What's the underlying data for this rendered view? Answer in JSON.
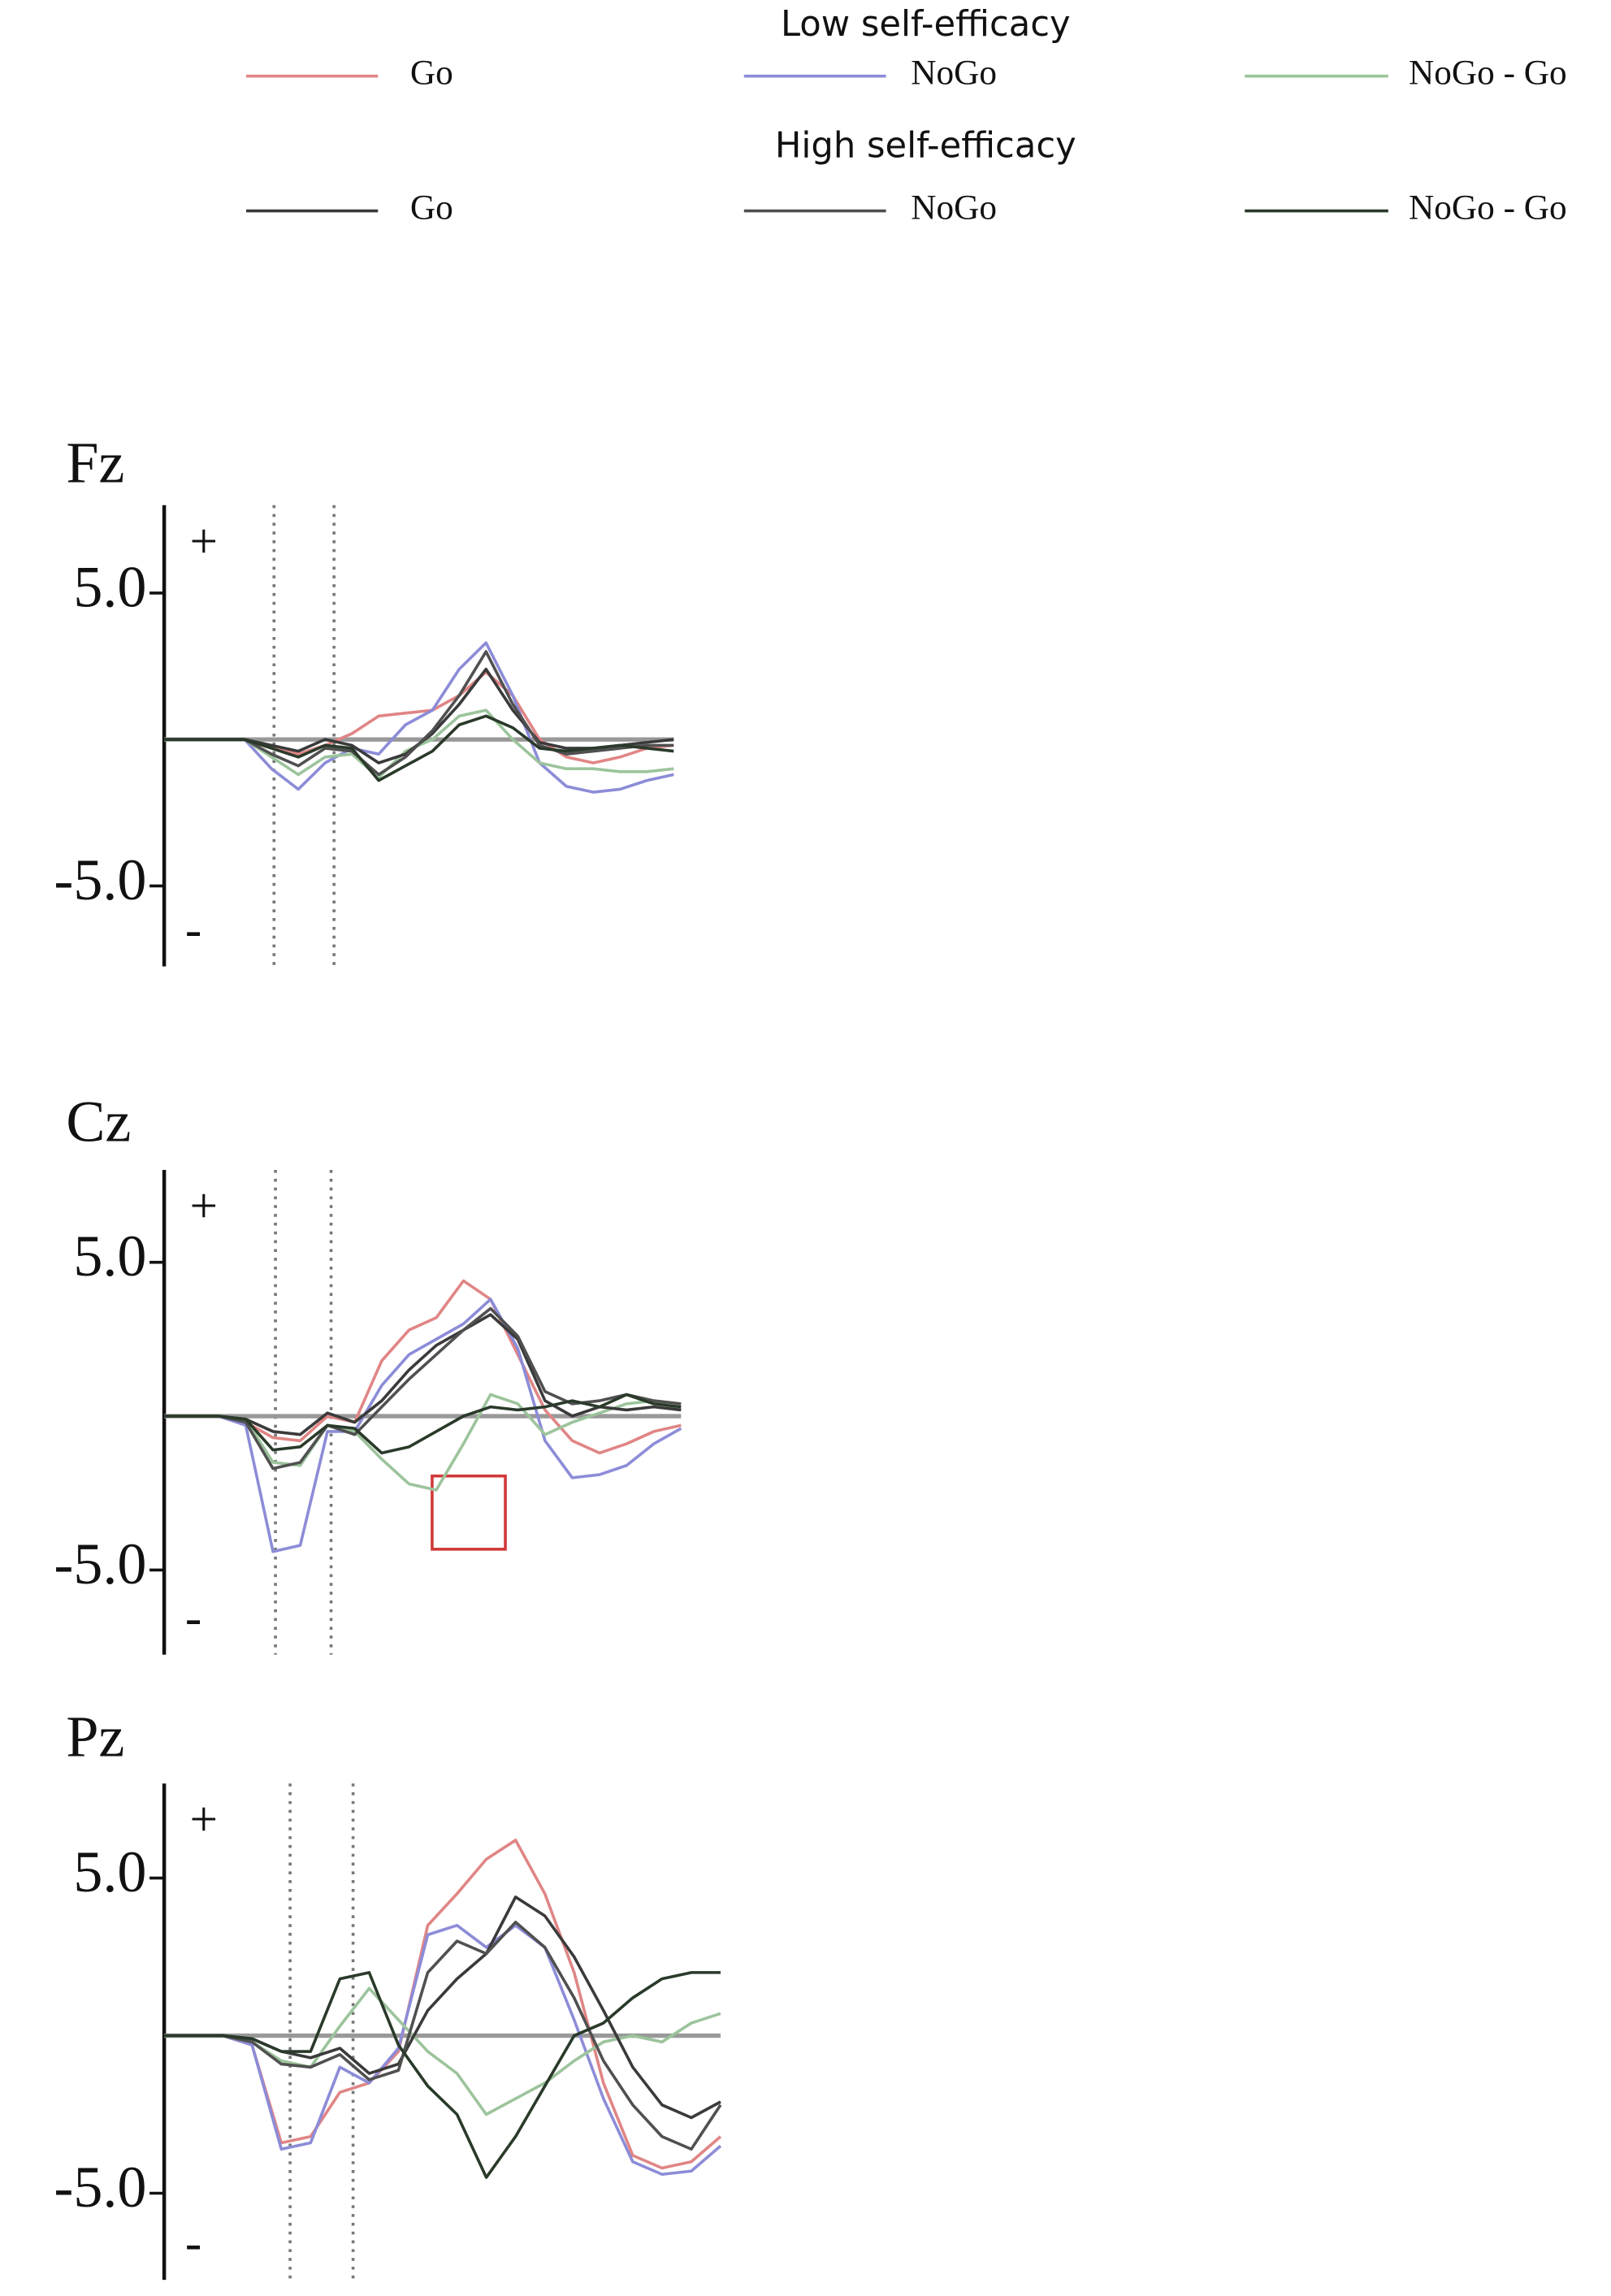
{
  "legend": {
    "groups": [
      {
        "title": "Low self-efficacy",
        "entries": [
          {
            "name": "Go",
            "color": "#e08585"
          },
          {
            "name": "NoGo",
            "color": "#8c8cd8"
          },
          {
            "name": "NoGo - Go",
            "color": "#9cc49c"
          }
        ]
      },
      {
        "title": "High self-efficacy",
        "entries": [
          {
            "name": "Go",
            "color": "#3a3a3a"
          },
          {
            "name": "NoGo",
            "color": "#505050"
          },
          {
            "name": "NoGo - Go",
            "color": "#2a3a2a"
          }
        ]
      }
    ]
  },
  "chart_data": [
    {
      "type": "line",
      "title": "Fz",
      "pos_label": "+",
      "neg_label": "-",
      "ylim": [
        -7.75,
        8
      ],
      "yticks": [
        {
          "value": 5,
          "label": "5.0"
        },
        {
          "value": -5,
          "label": "-5.0"
        }
      ],
      "categories": [
        null,
        null,
        null,
        null,
        null,
        null,
        null,
        null,
        null,
        null,
        null,
        null,
        null,
        null,
        null,
        null,
        null,
        null,
        null,
        null
      ],
      "series": [
        {
          "color": "#e08585",
          "values": [
            0,
            0,
            0,
            0,
            -0.3,
            -0.5,
            -0.2,
            0.2,
            0.8,
            0.9,
            1.0,
            1.5,
            2.3,
            1.5,
            0,
            -0.6,
            -0.8,
            -0.6,
            -0.3,
            -0.2
          ]
        },
        {
          "color": "#8c8cd8",
          "values": [
            0,
            0,
            0,
            0,
            -1,
            -1.7,
            -0.8,
            -0.3,
            -0.5,
            0.5,
            1.0,
            2.4,
            3.3,
            1.5,
            -0.8,
            -1.6,
            -1.8,
            -1.7,
            -1.4,
            -1.2
          ]
        },
        {
          "color": "#9cc49c",
          "values": [
            0,
            0,
            0,
            0,
            -0.6,
            -1.2,
            -0.6,
            -0.5,
            -1.3,
            -0.4,
            0.0,
            0.8,
            1.0,
            0,
            -0.8,
            -1.0,
            -1.0,
            -1.1,
            -1.1,
            -1.0
          ]
        },
        {
          "color": "#3a3a3a",
          "values": [
            0,
            0,
            0,
            0,
            -0.2,
            -0.4,
            0,
            -0.2,
            -0.8,
            -0.5,
            0.2,
            1.2,
            2.4,
            1.0,
            -0.1,
            -0.3,
            -0.3,
            -0.2,
            -0.1,
            0
          ]
        },
        {
          "color": "#505050",
          "values": [
            0,
            0,
            0,
            0,
            -0.5,
            -0.9,
            -0.3,
            -0.4,
            -1.2,
            -0.6,
            0.3,
            1.5,
            3.0,
            1.2,
            -0.2,
            -0.5,
            -0.4,
            -0.3,
            -0.2,
            -0.2
          ]
        },
        {
          "color": "#2a3a2a",
          "values": [
            0,
            0,
            0,
            0,
            -0.3,
            -0.6,
            -0.2,
            -0.3,
            -1.4,
            -0.9,
            -0.4,
            0.5,
            0.8,
            0.4,
            -0.3,
            -0.4,
            -0.3,
            -0.2,
            -0.3,
            -0.4
          ]
        }
      ]
    },
    {
      "type": "line",
      "title": "Cz",
      "pos_label": "+",
      "neg_label": "-",
      "ylim": [
        -7.75,
        8
      ],
      "yticks": [
        {
          "value": 5,
          "label": "5.0"
        },
        {
          "value": -5,
          "label": "-5.0"
        }
      ],
      "categories": [
        null,
        null,
        null,
        null,
        null,
        null,
        null,
        null,
        null,
        null,
        null,
        null,
        null,
        null,
        null,
        null,
        null,
        null,
        null,
        null
      ],
      "series": [
        {
          "color": "#e08585",
          "values": [
            0,
            0,
            0,
            -0.2,
            -0.7,
            -0.8,
            0,
            -0.2,
            1.8,
            2.8,
            3.2,
            4.4,
            3.8,
            2.0,
            0.2,
            -0.8,
            -1.2,
            -0.9,
            -0.5,
            -0.3
          ]
        },
        {
          "color": "#8c8cd8",
          "values": [
            0,
            0,
            0,
            -0.3,
            -4.4,
            -4.2,
            -0.5,
            -0.5,
            1.0,
            2.0,
            2.5,
            3.0,
            3.8,
            2.2,
            -0.8,
            -2.0,
            -1.9,
            -1.6,
            -0.9,
            -0.4
          ]
        },
        {
          "color": "#9cc49c",
          "values": [
            0,
            0,
            0,
            -0.1,
            -1.5,
            -1.6,
            -0.3,
            -0.5,
            -1.4,
            -2.2,
            -2.4,
            -0.9,
            0.7,
            0.4,
            -0.6,
            -0.2,
            0.1,
            0.4,
            0.5,
            0.2
          ]
        },
        {
          "color": "#3a3a3a",
          "values": [
            0,
            0,
            0,
            -0.1,
            -0.5,
            -0.6,
            0.1,
            -0.2,
            0.5,
            1.5,
            2.3,
            2.8,
            3.3,
            2.5,
            0.5,
            0,
            0.3,
            0.2,
            0.3,
            0.2
          ]
        },
        {
          "color": "#505050",
          "values": [
            0,
            0,
            0,
            -0.2,
            -1.7,
            -1.5,
            -0.3,
            -0.6,
            0.3,
            1.2,
            2.0,
            2.8,
            3.5,
            2.6,
            0.8,
            0.4,
            0.5,
            0.7,
            0.5,
            0.4
          ]
        },
        {
          "color": "#2a3a2a",
          "values": [
            0,
            0,
            0,
            -0.1,
            -1.1,
            -1.0,
            -0.3,
            -0.4,
            -1.2,
            -1.0,
            -0.5,
            0,
            0.3,
            0.2,
            0.3,
            0.5,
            0.3,
            0.7,
            0.4,
            0.3
          ]
        }
      ]
    },
    {
      "type": "line",
      "title": "Pz",
      "pos_label": "+",
      "neg_label": "-",
      "ylim": [
        -7.75,
        8
      ],
      "yticks": [
        {
          "value": 5,
          "label": "5.0"
        },
        {
          "value": -5,
          "label": "-5.0"
        }
      ],
      "categories": [
        null,
        null,
        null,
        null,
        null,
        null,
        null,
        null,
        null,
        null,
        null,
        null,
        null,
        null,
        null,
        null,
        null,
        null,
        null,
        null
      ],
      "series": [
        {
          "color": "#e08585",
          "values": [
            0,
            0,
            0,
            -0.3,
            -3.4,
            -3.2,
            -1.8,
            -1.5,
            -0.5,
            3.5,
            4.5,
            5.6,
            6.2,
            4.5,
            2.0,
            -1.5,
            -3.8,
            -4.2,
            -4.0,
            -3.2
          ]
        },
        {
          "color": "#8c8cd8",
          "values": [
            0,
            0,
            0,
            -0.3,
            -3.6,
            -3.4,
            -1.0,
            -1.5,
            -0.4,
            3.2,
            3.5,
            2.8,
            3.5,
            2.8,
            0.5,
            -2.0,
            -4.0,
            -4.4,
            -4.3,
            -3.5
          ]
        },
        {
          "color": "#9cc49c",
          "values": [
            0,
            0,
            0,
            -0.2,
            -0.8,
            -1.0,
            0.3,
            1.5,
            0.5,
            -0.5,
            -1.2,
            -2.5,
            -2.0,
            -1.5,
            -0.8,
            -0.2,
            0,
            -0.2,
            0.4,
            0.7
          ]
        },
        {
          "color": "#3a3a3a",
          "values": [
            0,
            0,
            0,
            -0.1,
            -0.5,
            -0.7,
            -0.4,
            -1.2,
            -0.9,
            0.8,
            1.8,
            2.6,
            4.4,
            3.8,
            2.5,
            0.8,
            -1.0,
            -2.2,
            -2.6,
            -2.1
          ]
        },
        {
          "color": "#505050",
          "values": [
            0,
            0,
            0,
            -0.2,
            -0.9,
            -1.0,
            -0.6,
            -1.4,
            -1.1,
            2.0,
            3.0,
            2.6,
            3.6,
            2.8,
            1.2,
            -0.8,
            -2.2,
            -3.2,
            -3.6,
            -2.2
          ]
        },
        {
          "color": "#2a3a2a",
          "values": [
            0,
            0,
            0,
            -0.1,
            -0.5,
            -0.5,
            1.8,
            2.0,
            -0.3,
            -1.6,
            -2.5,
            -4.5,
            -3.2,
            -1.6,
            0,
            0.4,
            1.2,
            1.8,
            2.0,
            2.0
          ]
        }
      ]
    }
  ]
}
